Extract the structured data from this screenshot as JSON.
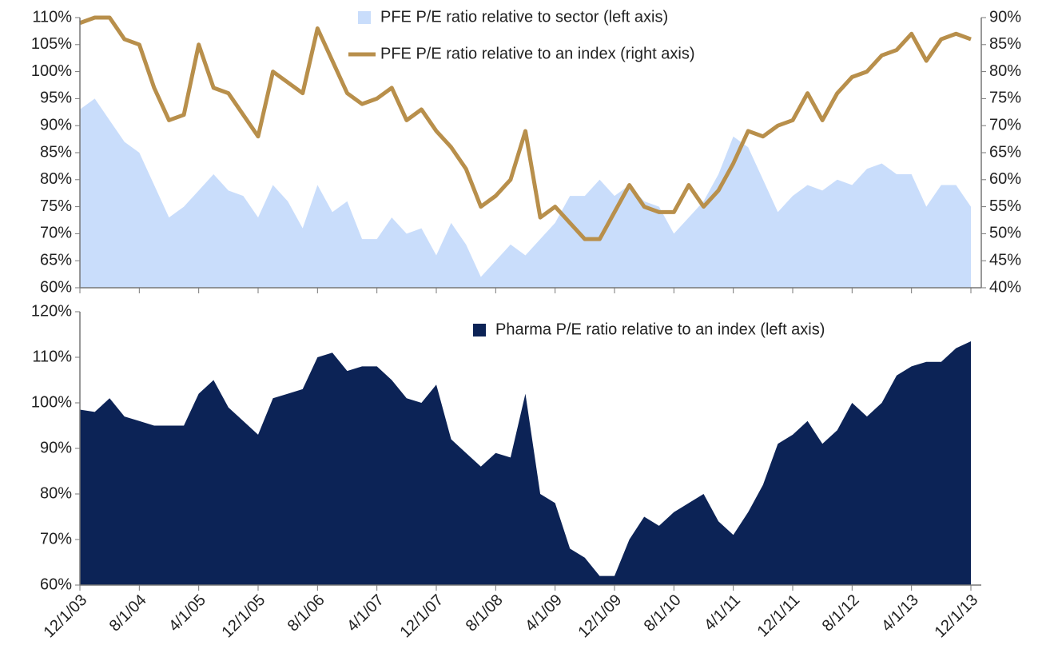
{
  "chart_data": [
    {
      "type": "area",
      "series": [
        {
          "name": "PFE P/E ratio relative to sector (left axis)",
          "type": "area",
          "color": "#c9ddfb",
          "values": [
            93,
            95,
            91,
            87,
            85,
            79,
            73,
            75,
            78,
            81,
            78,
            77,
            73,
            79,
            76,
            71,
            79,
            74,
            76,
            69,
            69,
            73,
            70,
            71,
            66,
            72,
            68,
            62,
            65,
            68,
            66,
            69,
            72,
            77,
            77,
            80,
            77,
            79,
            76,
            75,
            70,
            73,
            76,
            81,
            88,
            86,
            80,
            74,
            77,
            79,
            78,
            80,
            79,
            82,
            83,
            81,
            81,
            75,
            79,
            79,
            75
          ]
        },
        {
          "name": "PFE P/E ratio relative to an index (right axis)",
          "type": "line",
          "axis": "y2",
          "color": "#b88f4b",
          "values": [
            89,
            90,
            90,
            86,
            85,
            77,
            71,
            72,
            85,
            77,
            76,
            72,
            68,
            80,
            78,
            76,
            88,
            82,
            76,
            74,
            75,
            77,
            71,
            73,
            69,
            66,
            62,
            55,
            57,
            60,
            69,
            53,
            55,
            52,
            49,
            49,
            54,
            59,
            55,
            54,
            54,
            59,
            55,
            58,
            63,
            69,
            68,
            70,
            71,
            76,
            71,
            76,
            79,
            80,
            83,
            84,
            87,
            82,
            86,
            87,
            86
          ]
        }
      ],
      "ylim": [
        60,
        110
      ],
      "yticks": [
        {
          "value": 60,
          "label": "60%"
        },
        {
          "value": 65,
          "label": "65%"
        },
        {
          "value": 70,
          "label": "70%"
        },
        {
          "value": 75,
          "label": "75%"
        },
        {
          "value": 80,
          "label": "80%"
        },
        {
          "value": 85,
          "label": "85%"
        },
        {
          "value": 90,
          "label": "90%"
        },
        {
          "value": 95,
          "label": "95%"
        },
        {
          "value": 100,
          "label": "100%"
        },
        {
          "value": 105,
          "label": "105%"
        },
        {
          "value": 110,
          "label": "110%"
        }
      ],
      "y2lim": [
        40,
        90
      ],
      "y2ticks": [
        {
          "value": 40,
          "label": "40%"
        },
        {
          "value": 45,
          "label": "45%"
        },
        {
          "value": 50,
          "label": "50%"
        },
        {
          "value": 55,
          "label": "55%"
        },
        {
          "value": 60,
          "label": "60%"
        },
        {
          "value": 65,
          "label": "65%"
        },
        {
          "value": 70,
          "label": "70%"
        },
        {
          "value": 75,
          "label": "75%"
        },
        {
          "value": 80,
          "label": "80%"
        },
        {
          "value": 85,
          "label": "85%"
        },
        {
          "value": 90,
          "label": "90%"
        }
      ]
    },
    {
      "type": "area",
      "categories": [
        "12/1/03",
        null,
        null,
        null,
        "8/1/04",
        null,
        null,
        null,
        "4/1/05",
        null,
        null,
        null,
        "12/1/05",
        null,
        null,
        null,
        "8/1/06",
        null,
        null,
        null,
        "4/1/07",
        null,
        null,
        null,
        "12/1/07",
        null,
        null,
        null,
        "8/1/08",
        null,
        null,
        null,
        "4/1/09",
        null,
        null,
        null,
        "12/1/09",
        null,
        null,
        null,
        "8/1/10",
        null,
        null,
        null,
        "4/1/11",
        null,
        null,
        null,
        "12/1/11",
        null,
        null,
        null,
        "8/1/12",
        null,
        null,
        null,
        "4/1/13",
        null,
        null,
        null,
        "12/1/13"
      ],
      "series": [
        {
          "name": "Pharma P/E ratio relative to an index (left axis)",
          "type": "area",
          "color": "#0c2356",
          "values": [
            98.5,
            98,
            101,
            97,
            96,
            95,
            95,
            95,
            102,
            105,
            99,
            96,
            93,
            101,
            102,
            103,
            110,
            111,
            107,
            108,
            108,
            105,
            101,
            100,
            104,
            92,
            89,
            86,
            89,
            88,
            102,
            80,
            78,
            68,
            66,
            62,
            62,
            70,
            75,
            73,
            76,
            78,
            80,
            74,
            71,
            76,
            82,
            91,
            93,
            96,
            91,
            94,
            100,
            97,
            100,
            106,
            108,
            109,
            109,
            112,
            113.5
          ]
        }
      ],
      "ylim": [
        60,
        120
      ],
      "yticks": [
        {
          "value": 60,
          "label": "60%"
        },
        {
          "value": 70,
          "label": "70%"
        },
        {
          "value": 80,
          "label": "80%"
        },
        {
          "value": 90,
          "label": "90%"
        },
        {
          "value": 100,
          "label": "100%"
        },
        {
          "value": 110,
          "label": "110%"
        },
        {
          "value": 120,
          "label": "120%"
        }
      ]
    }
  ]
}
